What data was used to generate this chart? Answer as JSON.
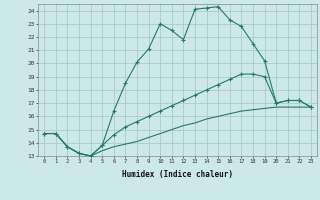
{
  "xlabel": "Humidex (Indice chaleur)",
  "bg_color": "#cce8e8",
  "grid_color": "#aacccc",
  "line_color": "#267a6a",
  "xlim": [
    -0.5,
    23.5
  ],
  "ylim": [
    13,
    24.5
  ],
  "yticks": [
    13,
    14,
    15,
    16,
    17,
    18,
    19,
    20,
    21,
    22,
    23,
    24
  ],
  "xticks": [
    0,
    1,
    2,
    3,
    4,
    5,
    6,
    7,
    8,
    9,
    10,
    11,
    12,
    13,
    14,
    15,
    16,
    17,
    18,
    19,
    20,
    21,
    22,
    23
  ],
  "line1_x": [
    0,
    1,
    2,
    3,
    4,
    5,
    6,
    7,
    8,
    9,
    10,
    11,
    12,
    13,
    14,
    15,
    16,
    17,
    18,
    19,
    20,
    21,
    22,
    23
  ],
  "line1_y": [
    14.7,
    14.7,
    13.7,
    13.2,
    13.0,
    13.8,
    16.4,
    18.5,
    20.1,
    21.1,
    23.0,
    22.5,
    21.8,
    24.1,
    24.2,
    24.3,
    23.3,
    22.8,
    21.5,
    20.2,
    17.0,
    17.2,
    17.2,
    16.7
  ],
  "line2_x": [
    0,
    1,
    2,
    3,
    4,
    5,
    6,
    7,
    8,
    9,
    10,
    11,
    12,
    13,
    14,
    15,
    16,
    17,
    18,
    19,
    20,
    21,
    22,
    23
  ],
  "line2_y": [
    14.7,
    14.7,
    13.7,
    13.2,
    13.0,
    13.8,
    14.6,
    15.2,
    15.6,
    16.0,
    16.4,
    16.8,
    17.2,
    17.6,
    18.0,
    18.4,
    18.8,
    19.2,
    19.2,
    19.0,
    17.0,
    17.2,
    17.2,
    16.7
  ],
  "line3_x": [
    0,
    1,
    2,
    3,
    4,
    5,
    6,
    7,
    8,
    9,
    10,
    11,
    12,
    13,
    14,
    15,
    16,
    17,
    18,
    19,
    20,
    21,
    22,
    23
  ],
  "line3_y": [
    14.7,
    14.7,
    13.7,
    13.2,
    13.0,
    13.4,
    13.7,
    13.9,
    14.1,
    14.4,
    14.7,
    15.0,
    15.3,
    15.5,
    15.8,
    16.0,
    16.2,
    16.4,
    16.5,
    16.6,
    16.7,
    16.7,
    16.7,
    16.7
  ]
}
